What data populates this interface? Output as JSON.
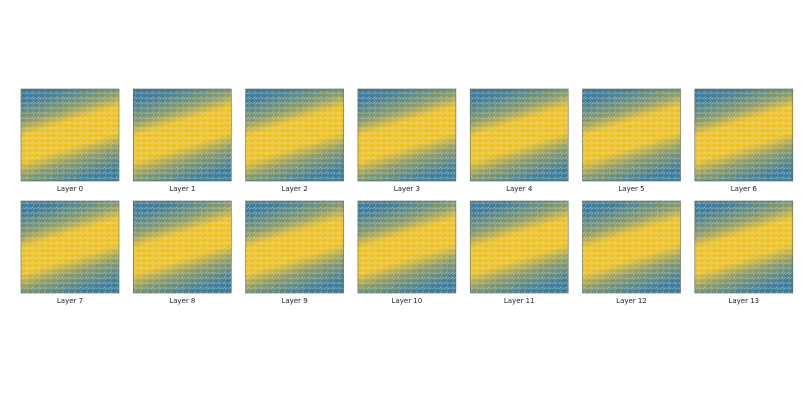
{
  "figure": {
    "panels": [
      {
        "label": "Layer 0"
      },
      {
        "label": "Layer 1"
      },
      {
        "label": "Layer 2"
      },
      {
        "label": "Layer 3"
      },
      {
        "label": "Layer 4"
      },
      {
        "label": "Layer 5"
      },
      {
        "label": "Layer 6"
      },
      {
        "label": "Layer 7"
      },
      {
        "label": "Layer 8"
      },
      {
        "label": "Layer 9"
      },
      {
        "label": "Layer 10"
      },
      {
        "label": "Layer 11"
      },
      {
        "label": "Layer 12"
      },
      {
        "label": "Layer 13"
      }
    ]
  }
}
